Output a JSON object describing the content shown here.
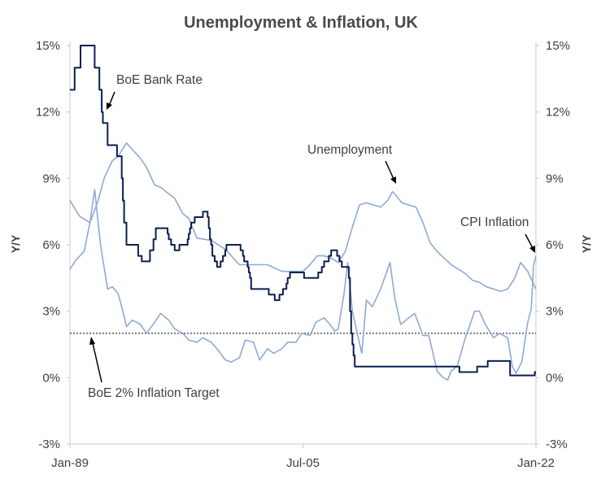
{
  "colors": {
    "bank_rate": "#0b1f4f",
    "unemployment": "#8fa9d6",
    "cpi": "#8fa9d6",
    "target_line": "#000000",
    "text": "#3f3f3f"
  },
  "chart_data": {
    "type": "line",
    "title": "Unemployment & Inflation, UK",
    "ylabel_left": "Y/Y",
    "ylabel_right": "Y/Y",
    "ylim": [
      -3,
      15
    ],
    "y_ticks": [
      -3,
      0,
      3,
      6,
      9,
      12,
      15
    ],
    "y_tick_labels": [
      "-3%",
      "0%",
      "3%",
      "6%",
      "9%",
      "12%",
      "15%"
    ],
    "xlim": [
      "1989-01",
      "2022-01"
    ],
    "x_ticks": [
      {
        "date": "1989-01",
        "label": "Jan-89"
      },
      {
        "date": "2005-07",
        "label": "Jul-05"
      },
      {
        "date": "2022-01",
        "label": "Jan-22"
      }
    ],
    "reference_line": {
      "label": "BoE 2% Inflation Target",
      "value": 2.0
    },
    "annotations": [
      {
        "text": "BoE Bank Rate",
        "series": "bank_rate"
      },
      {
        "text": "Unemployment",
        "series": "unemployment"
      },
      {
        "text": "CPI Inflation",
        "series": "cpi"
      },
      {
        "text": "BoE 2% Inflation Target",
        "series": "target"
      }
    ],
    "series": [
      {
        "key": "bank_rate",
        "name": "BoE Bank Rate",
        "points": [
          [
            "1989-01",
            13.0
          ],
          [
            "1989-05",
            14.0
          ],
          [
            "1989-10",
            15.0
          ],
          [
            "1990-10",
            14.0
          ],
          [
            "1991-02",
            13.0
          ],
          [
            "1991-04",
            12.0
          ],
          [
            "1991-05",
            11.5
          ],
          [
            "1991-09",
            10.5
          ],
          [
            "1992-05",
            10.0
          ],
          [
            "1992-09",
            9.0
          ],
          [
            "1992-10",
            8.0
          ],
          [
            "1992-11",
            7.0
          ],
          [
            "1993-01",
            6.0
          ],
          [
            "1993-11",
            5.5
          ],
          [
            "1994-02",
            5.25
          ],
          [
            "1994-09",
            5.75
          ],
          [
            "1994-12",
            6.25
          ],
          [
            "1995-02",
            6.75
          ],
          [
            "1995-12",
            6.5
          ],
          [
            "1996-01",
            6.25
          ],
          [
            "1996-03",
            6.0
          ],
          [
            "1996-06",
            5.75
          ],
          [
            "1996-10",
            6.0
          ],
          [
            "1997-05",
            6.25
          ],
          [
            "1997-06",
            6.5
          ],
          [
            "1997-07",
            6.75
          ],
          [
            "1997-08",
            7.0
          ],
          [
            "1997-11",
            7.25
          ],
          [
            "1998-06",
            7.5
          ],
          [
            "1998-10",
            7.25
          ],
          [
            "1998-11",
            6.75
          ],
          [
            "1998-12",
            6.25
          ],
          [
            "1999-01",
            6.0
          ],
          [
            "1999-02",
            5.5
          ],
          [
            "1999-04",
            5.25
          ],
          [
            "1999-06",
            5.0
          ],
          [
            "1999-09",
            5.25
          ],
          [
            "1999-11",
            5.5
          ],
          [
            "2000-01",
            5.75
          ],
          [
            "2000-02",
            6.0
          ],
          [
            "2001-02",
            5.75
          ],
          [
            "2001-04",
            5.5
          ],
          [
            "2001-05",
            5.25
          ],
          [
            "2001-08",
            5.0
          ],
          [
            "2001-09",
            4.75
          ],
          [
            "2001-10",
            4.5
          ],
          [
            "2001-11",
            4.0
          ],
          [
            "2003-02",
            3.75
          ],
          [
            "2003-07",
            3.5
          ],
          [
            "2003-11",
            3.75
          ],
          [
            "2004-02",
            4.0
          ],
          [
            "2004-05",
            4.25
          ],
          [
            "2004-06",
            4.5
          ],
          [
            "2004-08",
            4.75
          ],
          [
            "2005-08",
            4.5
          ],
          [
            "2006-08",
            4.75
          ],
          [
            "2006-11",
            5.0
          ],
          [
            "2007-01",
            5.25
          ],
          [
            "2007-05",
            5.5
          ],
          [
            "2007-07",
            5.75
          ],
          [
            "2007-12",
            5.5
          ],
          [
            "2008-02",
            5.25
          ],
          [
            "2008-04",
            5.0
          ],
          [
            "2008-10",
            4.5
          ],
          [
            "2008-11",
            3.0
          ],
          [
            "2008-12",
            2.0
          ],
          [
            "2009-01",
            1.5
          ],
          [
            "2009-02",
            1.0
          ],
          [
            "2009-03",
            0.5
          ],
          [
            "2016-08",
            0.25
          ],
          [
            "2017-11",
            0.5
          ],
          [
            "2018-08",
            0.75
          ],
          [
            "2020-03",
            0.1
          ],
          [
            "2021-12",
            0.25
          ],
          [
            "2022-01",
            0.25
          ]
        ]
      },
      {
        "key": "unemployment",
        "name": "Unemployment",
        "points": [
          [
            "1989-01",
            8.0
          ],
          [
            "1989-09",
            7.3
          ],
          [
            "1990-06",
            7.0
          ],
          [
            "1991-01",
            8.0
          ],
          [
            "1991-06",
            9.0
          ],
          [
            "1992-01",
            9.8
          ],
          [
            "1992-06",
            10.0
          ],
          [
            "1993-01",
            10.6
          ],
          [
            "1993-06",
            10.3
          ],
          [
            "1994-01",
            9.9
          ],
          [
            "1994-06",
            9.5
          ],
          [
            "1995-01",
            8.7
          ],
          [
            "1995-06",
            8.6
          ],
          [
            "1996-01",
            8.3
          ],
          [
            "1996-06",
            8.1
          ],
          [
            "1997-01",
            7.4
          ],
          [
            "1997-06",
            7.2
          ],
          [
            "1998-01",
            6.3
          ],
          [
            "1999-01",
            6.2
          ],
          [
            "2000-01",
            5.8
          ],
          [
            "2001-01",
            5.1
          ],
          [
            "2002-01",
            5.1
          ],
          [
            "2003-01",
            5.1
          ],
          [
            "2004-01",
            4.8
          ],
          [
            "2005-01",
            4.8
          ],
          [
            "2005-07",
            4.8
          ],
          [
            "2006-01",
            5.1
          ],
          [
            "2006-07",
            5.5
          ],
          [
            "2007-01",
            5.5
          ],
          [
            "2007-07",
            5.4
          ],
          [
            "2008-01",
            5.2
          ],
          [
            "2008-07",
            5.7
          ],
          [
            "2009-01",
            6.8
          ],
          [
            "2009-07",
            7.8
          ],
          [
            "2010-01",
            7.9
          ],
          [
            "2010-07",
            7.8
          ],
          [
            "2011-01",
            7.7
          ],
          [
            "2011-07",
            8.0
          ],
          [
            "2011-11",
            8.4
          ],
          [
            "2012-01",
            8.3
          ],
          [
            "2012-07",
            7.9
          ],
          [
            "2013-01",
            7.8
          ],
          [
            "2013-07",
            7.7
          ],
          [
            "2014-01",
            7.0
          ],
          [
            "2014-07",
            6.1
          ],
          [
            "2015-01",
            5.7
          ],
          [
            "2015-07",
            5.4
          ],
          [
            "2016-01",
            5.1
          ],
          [
            "2016-07",
            4.9
          ],
          [
            "2017-01",
            4.7
          ],
          [
            "2017-07",
            4.4
          ],
          [
            "2018-01",
            4.3
          ],
          [
            "2018-07",
            4.1
          ],
          [
            "2019-01",
            4.0
          ],
          [
            "2019-07",
            3.9
          ],
          [
            "2020-01",
            4.0
          ],
          [
            "2020-07",
            4.5
          ],
          [
            "2020-12",
            5.2
          ],
          [
            "2021-06",
            4.8
          ],
          [
            "2021-12",
            4.1
          ],
          [
            "2022-01",
            4.0
          ]
        ]
      },
      {
        "key": "cpi",
        "name": "CPI Inflation",
        "points": [
          [
            "1989-01",
            4.9
          ],
          [
            "1989-06",
            5.3
          ],
          [
            "1990-01",
            5.7
          ],
          [
            "1990-06",
            7.0
          ],
          [
            "1990-10",
            8.5
          ],
          [
            "1991-03",
            6.0
          ],
          [
            "1991-09",
            4.0
          ],
          [
            "1992-01",
            4.1
          ],
          [
            "1992-06",
            3.8
          ],
          [
            "1992-10",
            3.0
          ],
          [
            "1993-01",
            2.3
          ],
          [
            "1993-06",
            2.6
          ],
          [
            "1994-01",
            2.4
          ],
          [
            "1994-06",
            2.0
          ],
          [
            "1995-01",
            2.5
          ],
          [
            "1995-06",
            2.9
          ],
          [
            "1996-01",
            2.6
          ],
          [
            "1996-06",
            2.2
          ],
          [
            "1997-01",
            2.0
          ],
          [
            "1997-06",
            1.7
          ],
          [
            "1998-01",
            1.6
          ],
          [
            "1998-06",
            1.8
          ],
          [
            "1999-01",
            1.6
          ],
          [
            "1999-06",
            1.3
          ],
          [
            "2000-01",
            0.8
          ],
          [
            "2000-06",
            0.7
          ],
          [
            "2001-01",
            0.9
          ],
          [
            "2001-06",
            1.7
          ],
          [
            "2002-01",
            1.6
          ],
          [
            "2002-06",
            0.8
          ],
          [
            "2003-01",
            1.3
          ],
          [
            "2003-06",
            1.1
          ],
          [
            "2004-01",
            1.3
          ],
          [
            "2004-06",
            1.6
          ],
          [
            "2005-01",
            1.6
          ],
          [
            "2005-06",
            2.0
          ],
          [
            "2006-01",
            1.9
          ],
          [
            "2006-06",
            2.5
          ],
          [
            "2007-01",
            2.7
          ],
          [
            "2007-06",
            2.4
          ],
          [
            "2007-10",
            2.1
          ],
          [
            "2008-01",
            2.2
          ],
          [
            "2008-06",
            3.8
          ],
          [
            "2008-09",
            5.2
          ],
          [
            "2009-01",
            3.0
          ],
          [
            "2009-09",
            1.1
          ],
          [
            "2010-01",
            3.5
          ],
          [
            "2010-06",
            3.2
          ],
          [
            "2011-01",
            4.0
          ],
          [
            "2011-09",
            5.2
          ],
          [
            "2012-01",
            3.6
          ],
          [
            "2012-06",
            2.4
          ],
          [
            "2013-01",
            2.7
          ],
          [
            "2013-06",
            2.9
          ],
          [
            "2014-01",
            1.9
          ],
          [
            "2014-06",
            1.9
          ],
          [
            "2015-01",
            0.3
          ],
          [
            "2015-06",
            0.0
          ],
          [
            "2015-10",
            -0.1
          ],
          [
            "2016-01",
            0.3
          ],
          [
            "2016-06",
            0.5
          ],
          [
            "2017-01",
            1.8
          ],
          [
            "2017-09",
            3.0
          ],
          [
            "2018-01",
            3.0
          ],
          [
            "2018-06",
            2.4
          ],
          [
            "2019-01",
            1.8
          ],
          [
            "2019-06",
            2.0
          ],
          [
            "2020-01",
            1.8
          ],
          [
            "2020-05",
            0.5
          ],
          [
            "2020-08",
            0.2
          ],
          [
            "2021-01",
            0.7
          ],
          [
            "2021-06",
            2.5
          ],
          [
            "2021-09",
            3.1
          ],
          [
            "2021-11",
            5.1
          ],
          [
            "2022-01",
            5.5
          ]
        ]
      }
    ]
  }
}
